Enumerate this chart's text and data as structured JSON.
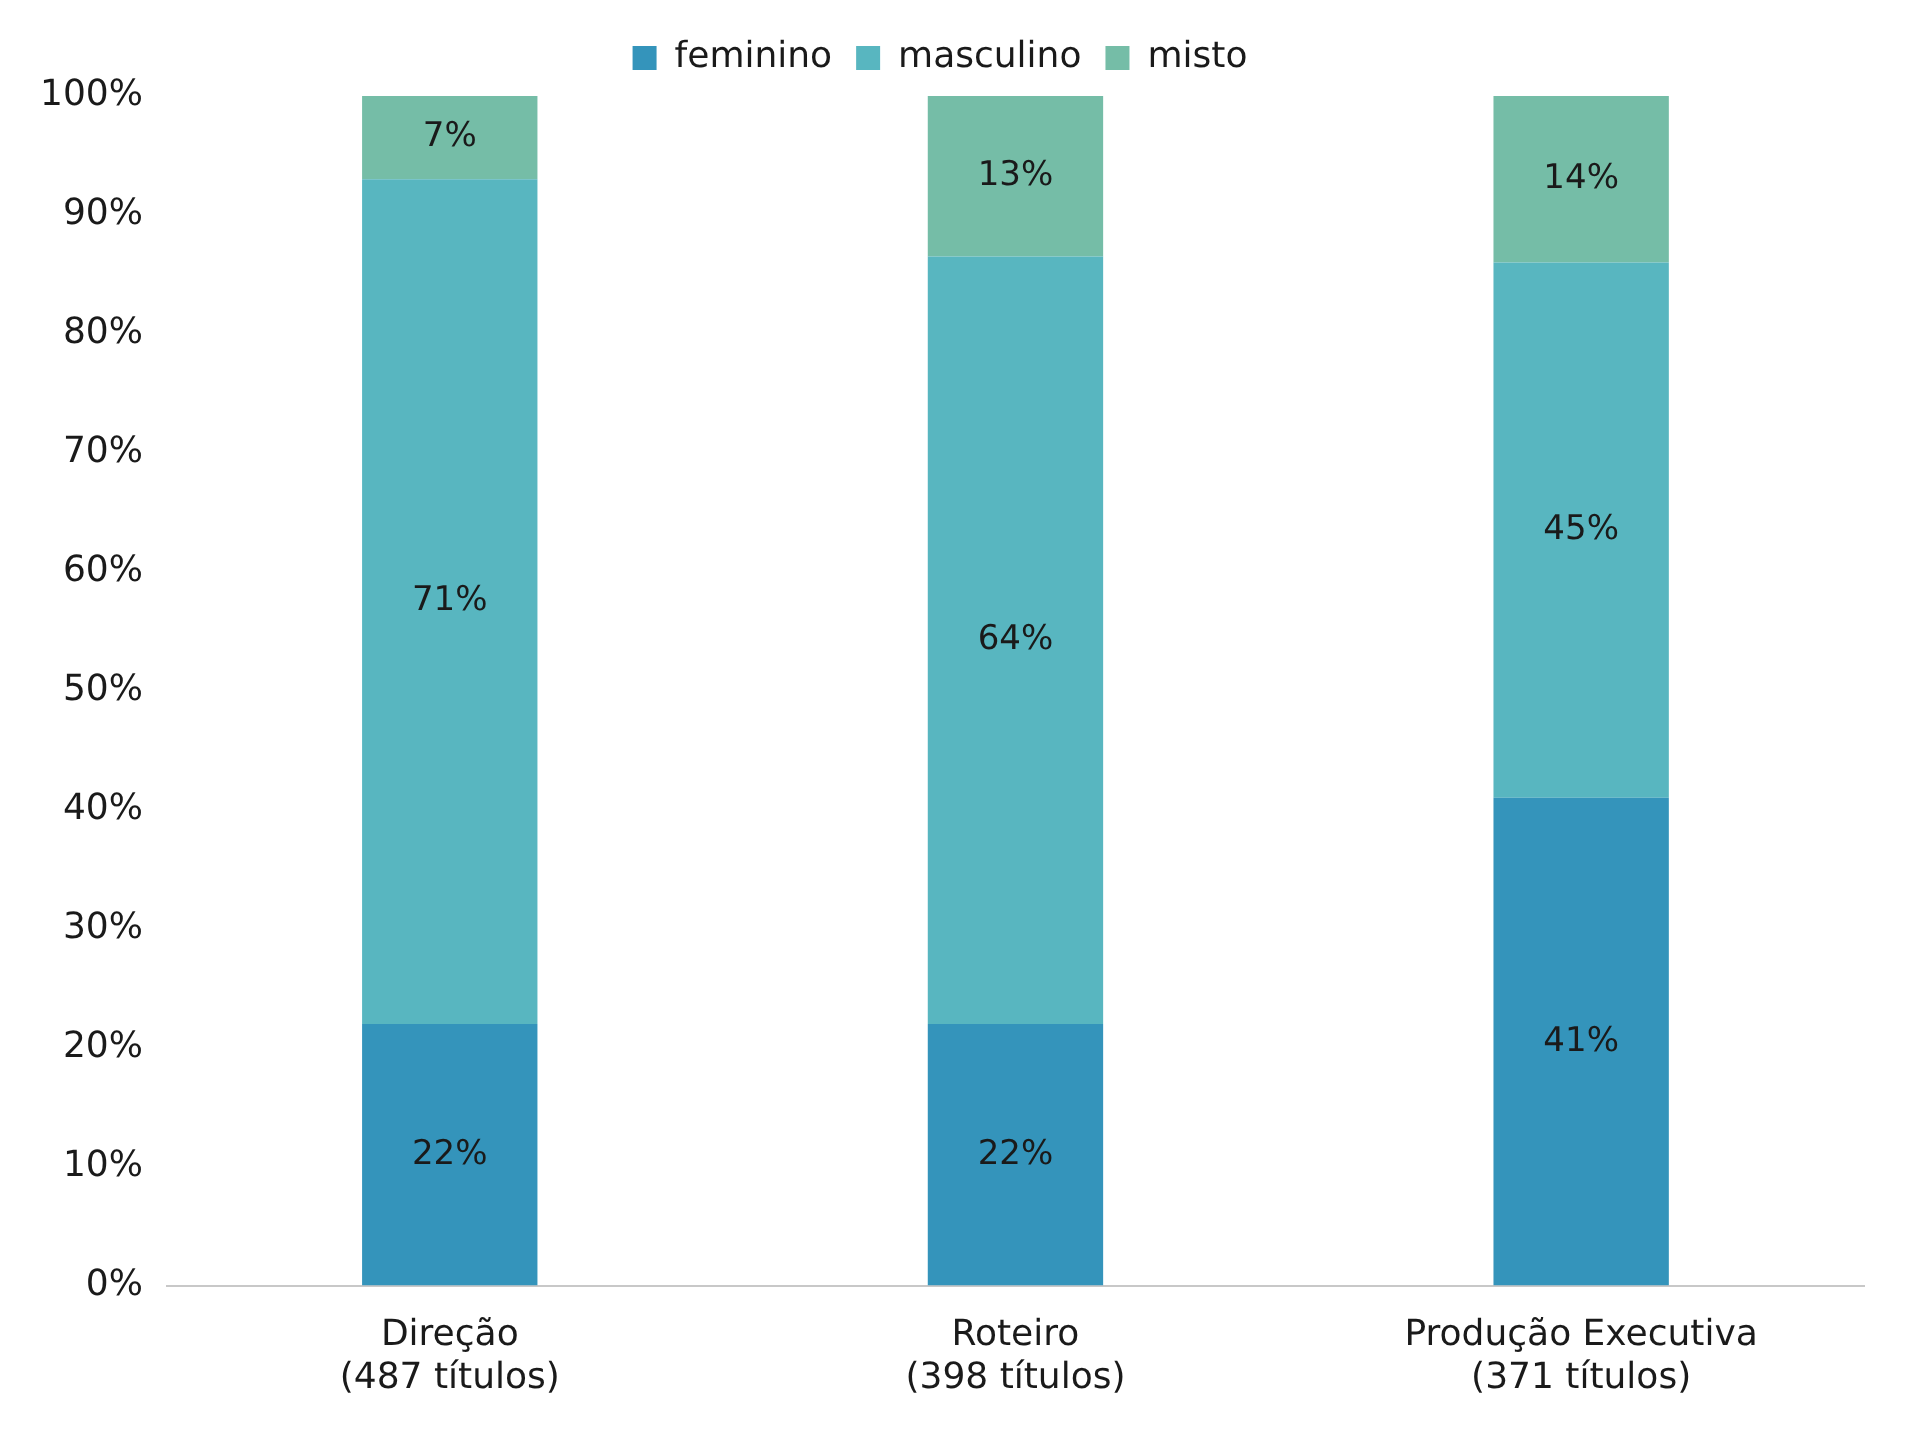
{
  "chart_data": {
    "type": "bar",
    "stacked": true,
    "categories": [
      "Direção\n(487 títulos)",
      "Roteiro\n(398 títulos)",
      "Produção Executiva\n(371 títulos)"
    ],
    "series": [
      {
        "name": "feminino",
        "color": "#3494bb",
        "values": [
          22,
          22,
          41
        ],
        "value_labels": [
          "22%",
          "22%",
          "41%"
        ]
      },
      {
        "name": "masculino",
        "color": "#58b6c0",
        "values": [
          71,
          64.5,
          45
        ],
        "value_labels": [
          "71%",
          "64%",
          "45%"
        ]
      },
      {
        "name": "misto",
        "color": "#75bda7",
        "values": [
          7,
          13.5,
          14
        ],
        "value_labels": [
          "7%",
          "13%",
          "14%"
        ]
      }
    ],
    "ylim": [
      0,
      100
    ],
    "yticks": [
      {
        "value": 0,
        "label": "0%"
      },
      {
        "value": 10,
        "label": "10%"
      },
      {
        "value": 20,
        "label": "20%"
      },
      {
        "value": 30,
        "label": "30%"
      },
      {
        "value": 40,
        "label": "40%"
      },
      {
        "value": 50,
        "label": "50%"
      },
      {
        "value": 60,
        "label": "60%"
      },
      {
        "value": 70,
        "label": "70%"
      },
      {
        "value": 80,
        "label": "80%"
      },
      {
        "value": 90,
        "label": "90%"
      },
      {
        "value": 100,
        "label": "100%"
      }
    ],
    "grid": false,
    "legend": "top"
  }
}
